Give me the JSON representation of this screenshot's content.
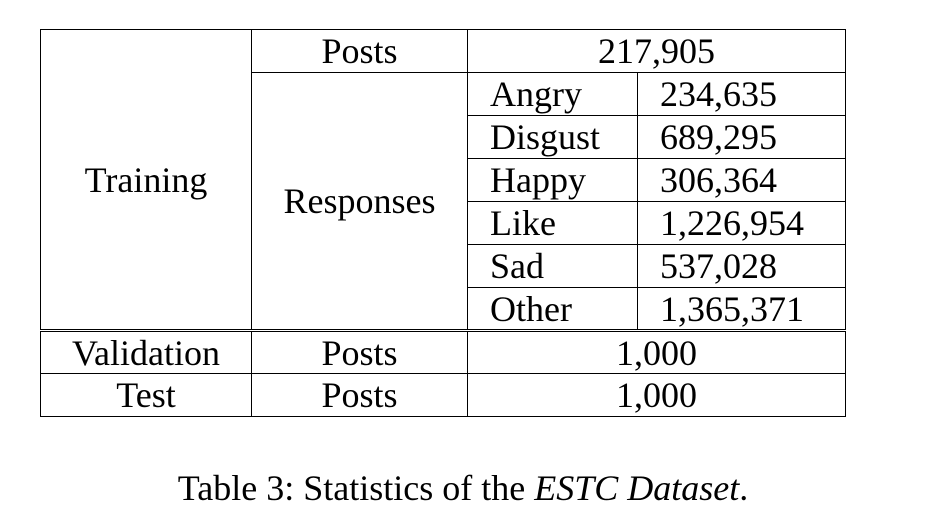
{
  "table": {
    "training": {
      "label": "Training",
      "posts_label": "Posts",
      "posts_value": "217,905",
      "responses_label": "Responses",
      "responses": [
        {
          "emotion": "Angry",
          "count": "234,635"
        },
        {
          "emotion": "Disgust",
          "count": "689,295"
        },
        {
          "emotion": "Happy",
          "count": "306,364"
        },
        {
          "emotion": "Like",
          "count": "1,226,954"
        },
        {
          "emotion": "Sad",
          "count": "537,028"
        },
        {
          "emotion": "Other",
          "count": "1,365,371"
        }
      ]
    },
    "validation": {
      "label": "Validation",
      "posts_label": "Posts",
      "posts_value": "1,000"
    },
    "test": {
      "label": "Test",
      "posts_label": "Posts",
      "posts_value": "1,000"
    }
  },
  "caption": {
    "prefix": "Table 3: Statistics of the ",
    "name": "ESTC Dataset",
    "suffix": "."
  }
}
